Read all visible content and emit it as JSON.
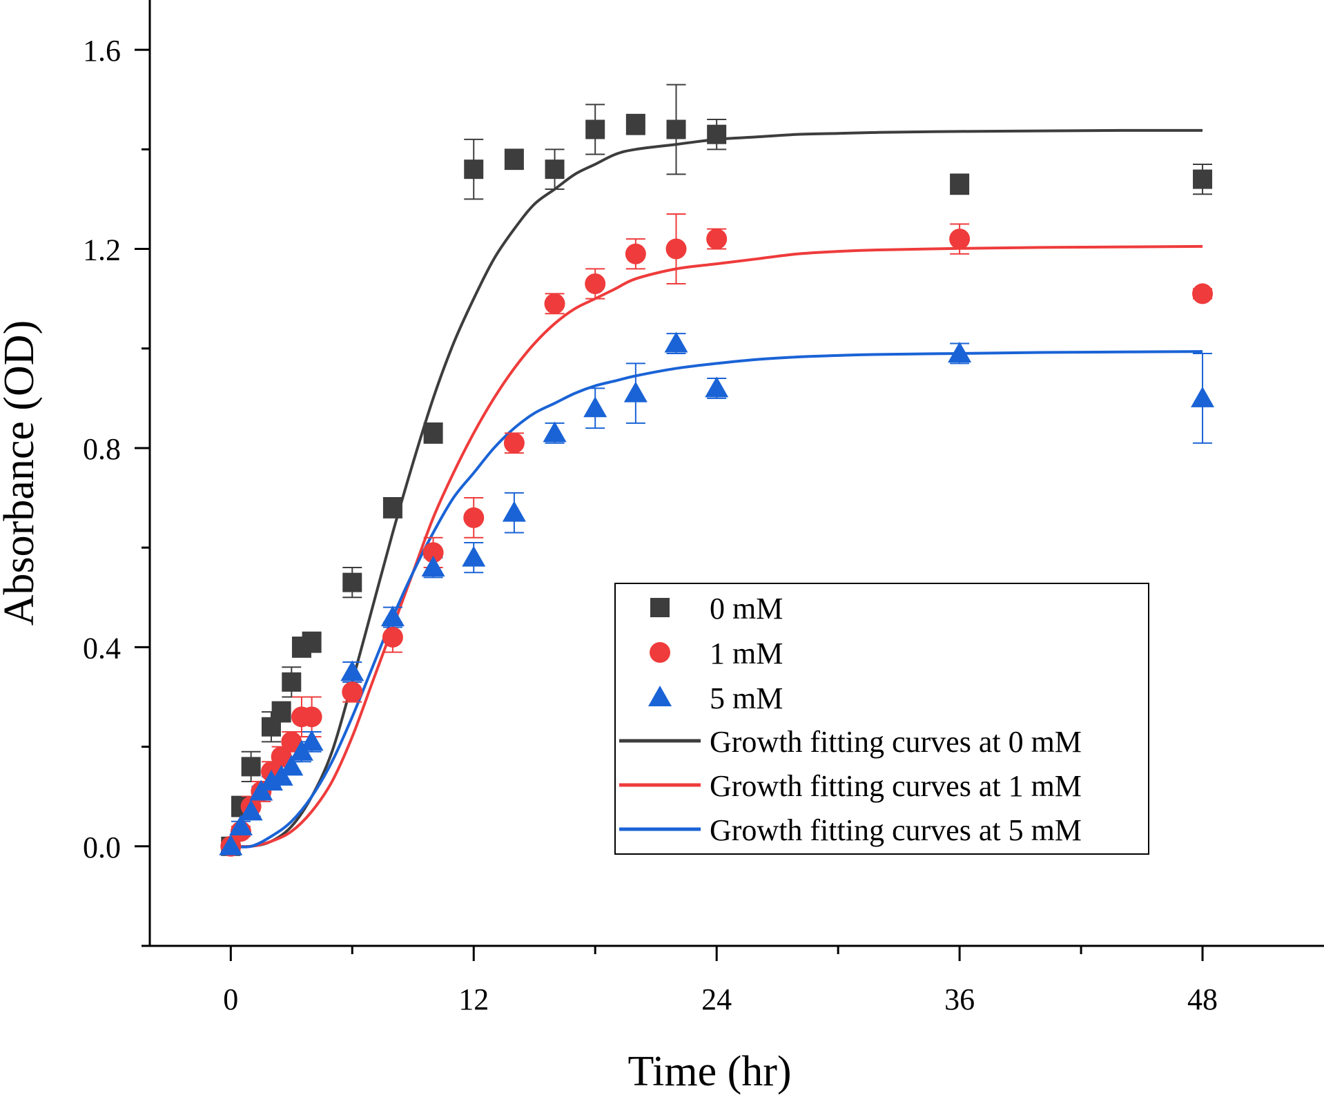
{
  "chart_data": {
    "type": "scatter",
    "xlabel": "Time (hr)",
    "ylabel": "Absorbance (OD)",
    "xlim": [
      -4,
      54
    ],
    "ylim": [
      -0.2,
      1.7
    ],
    "xticks": [
      0,
      12,
      24,
      36,
      48
    ],
    "xtick_labels": [
      "0",
      "12",
      "24",
      "36",
      "48"
    ],
    "yticks": [
      0.0,
      0.4,
      0.8,
      1.2,
      1.6
    ],
    "ytick_labels": [
      "0.0",
      "0.4",
      "0.8",
      "1.2",
      "1.6"
    ],
    "grid": false,
    "legend_position": "bottom-right",
    "series": [
      {
        "name": "0 mM",
        "marker": "square",
        "color": "#3d3d3d",
        "x": [
          0,
          0.5,
          1,
          2,
          2.5,
          3,
          3.5,
          4,
          6,
          8,
          10,
          12,
          14,
          16,
          18,
          20,
          22,
          24,
          36,
          48
        ],
        "y": [
          0.0,
          0.08,
          0.16,
          0.24,
          0.27,
          0.33,
          0.4,
          0.41,
          0.53,
          0.68,
          0.83,
          1.36,
          1.38,
          1.36,
          1.44,
          1.45,
          1.44,
          1.43,
          1.33,
          1.34
        ],
        "err": [
          0.01,
          0.02,
          0.03,
          0.03,
          0.02,
          0.03,
          0.02,
          0.02,
          0.03,
          0.02,
          0.02,
          0.06,
          0.02,
          0.04,
          0.05,
          0.02,
          0.09,
          0.03,
          0.02,
          0.03
        ]
      },
      {
        "name": "1 mM",
        "marker": "circle",
        "color": "#ef3b3b",
        "x": [
          0,
          0.5,
          1,
          1.5,
          2,
          2.5,
          3,
          3.5,
          4,
          6,
          8,
          10,
          12,
          14,
          16,
          18,
          20,
          22,
          24,
          36,
          48
        ],
        "y": [
          0.0,
          0.03,
          0.08,
          0.11,
          0.15,
          0.18,
          0.21,
          0.26,
          0.26,
          0.31,
          0.42,
          0.59,
          0.66,
          0.81,
          1.09,
          1.13,
          1.19,
          1.2,
          1.22,
          1.22,
          1.11
        ],
        "err": [
          0.01,
          0.01,
          0.02,
          0.02,
          0.02,
          0.02,
          0.02,
          0.04,
          0.04,
          0.02,
          0.03,
          0.03,
          0.04,
          0.02,
          0.02,
          0.03,
          0.03,
          0.07,
          0.02,
          0.03,
          0.01
        ]
      },
      {
        "name": "5 mM",
        "marker": "triangle",
        "color": "#1a63d6",
        "x": [
          0,
          0.5,
          1,
          1.5,
          2,
          2.5,
          3,
          3.5,
          4,
          6,
          8,
          10,
          12,
          14,
          16,
          18,
          20,
          22,
          24,
          36,
          48
        ],
        "y": [
          0.0,
          0.04,
          0.07,
          0.11,
          0.13,
          0.14,
          0.16,
          0.19,
          0.21,
          0.35,
          0.46,
          0.56,
          0.58,
          0.67,
          0.83,
          0.88,
          0.91,
          1.01,
          0.92,
          0.99,
          0.9
        ],
        "err": [
          0.01,
          0.01,
          0.01,
          0.01,
          0.01,
          0.01,
          0.01,
          0.02,
          0.02,
          0.02,
          0.02,
          0.02,
          0.03,
          0.04,
          0.02,
          0.04,
          0.06,
          0.02,
          0.02,
          0.02,
          0.09
        ]
      },
      {
        "name": "Growth fitting curves at 0 mM",
        "kind": "line",
        "color": "#3d3d3d",
        "x": [
          0,
          1,
          2,
          3,
          4,
          5,
          6,
          7,
          8,
          9,
          10,
          11,
          12,
          13,
          14,
          15,
          16,
          17,
          18,
          19,
          20,
          22,
          24,
          26,
          28,
          30,
          32,
          36,
          40,
          44,
          48
        ],
        "y": [
          0.0,
          0.0,
          0.01,
          0.04,
          0.1,
          0.19,
          0.33,
          0.48,
          0.63,
          0.77,
          0.9,
          1.01,
          1.1,
          1.18,
          1.24,
          1.29,
          1.32,
          1.35,
          1.37,
          1.39,
          1.4,
          1.41,
          1.42,
          1.425,
          1.43,
          1.432,
          1.434,
          1.436,
          1.437,
          1.438,
          1.438
        ]
      },
      {
        "name": "Growth fitting curves at 1 mM",
        "kind": "line",
        "color": "#ef3b3b",
        "x": [
          0,
          1,
          2,
          3,
          4,
          5,
          6,
          7,
          8,
          9,
          10,
          11,
          12,
          13,
          14,
          15,
          16,
          17,
          18,
          19,
          20,
          22,
          24,
          26,
          28,
          30,
          32,
          36,
          40,
          44,
          48
        ],
        "y": [
          0.0,
          0.0,
          0.01,
          0.03,
          0.07,
          0.13,
          0.22,
          0.33,
          0.44,
          0.55,
          0.66,
          0.75,
          0.83,
          0.9,
          0.96,
          1.01,
          1.05,
          1.08,
          1.1,
          1.12,
          1.14,
          1.16,
          1.17,
          1.18,
          1.19,
          1.195,
          1.198,
          1.201,
          1.203,
          1.204,
          1.205
        ]
      },
      {
        "name": "Growth fitting curves at 5 mM",
        "kind": "line",
        "color": "#1a63d6",
        "x": [
          0,
          1,
          2,
          3,
          4,
          5,
          6,
          7,
          8,
          9,
          10,
          11,
          12,
          13,
          14,
          15,
          16,
          17,
          18,
          19,
          20,
          22,
          24,
          26,
          28,
          30,
          32,
          36,
          40,
          44,
          48
        ],
        "y": [
          0.0,
          0.0,
          0.02,
          0.05,
          0.1,
          0.17,
          0.26,
          0.36,
          0.46,
          0.55,
          0.63,
          0.7,
          0.75,
          0.8,
          0.84,
          0.87,
          0.89,
          0.91,
          0.925,
          0.935,
          0.945,
          0.96,
          0.97,
          0.978,
          0.983,
          0.986,
          0.988,
          0.99,
          0.992,
          0.993,
          0.994
        ]
      }
    ]
  }
}
